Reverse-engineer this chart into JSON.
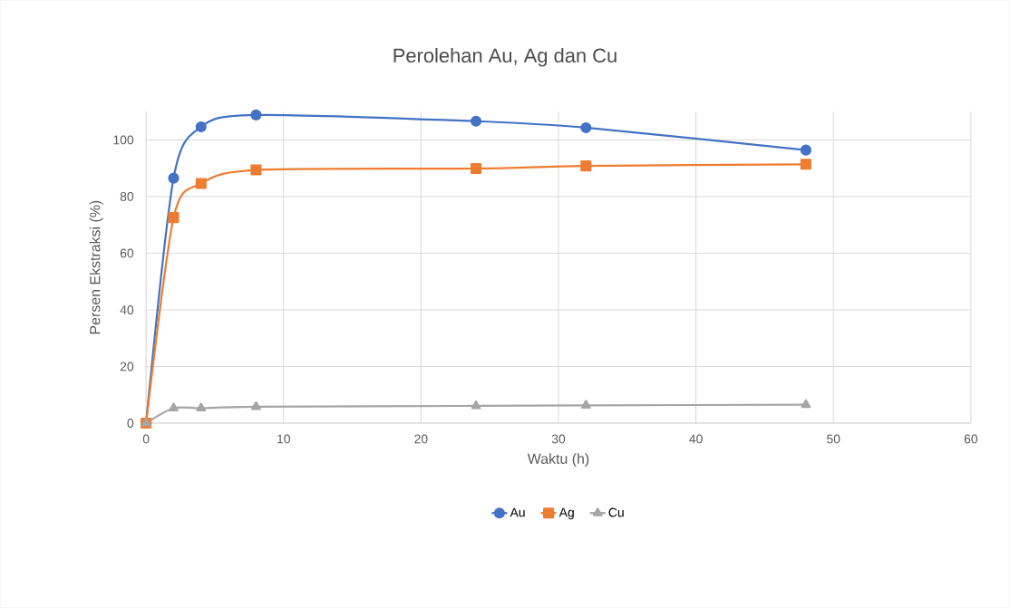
{
  "chart_data": {
    "type": "line",
    "title": "Perolehan Au, Ag dan Cu",
    "xlabel": "Waktu (h)",
    "ylabel": "Persen Ekstraksi (%)",
    "x": [
      0,
      2,
      4,
      8,
      24,
      32,
      48
    ],
    "series": [
      {
        "name": "Au",
        "color": "#4472c4",
        "marker": "circle",
        "values": [
          0,
          86.5,
          104.6,
          108.8,
          106.6,
          104.3,
          96.4
        ]
      },
      {
        "name": "Ag",
        "color": "#ed7d31",
        "marker": "square",
        "values": [
          0,
          72.6,
          84.6,
          89.4,
          89.9,
          90.8,
          91.4
        ]
      },
      {
        "name": "Cu",
        "color": "#a5a5a5",
        "marker": "triangle",
        "values": [
          0,
          5.3,
          5.3,
          5.8,
          6.1,
          6.3,
          6.5
        ]
      }
    ],
    "xlim": [
      0,
      60
    ],
    "xticks": [
      0,
      10,
      20,
      30,
      40,
      50,
      60
    ],
    "ylim": [
      0,
      110
    ],
    "yticks": [
      0,
      20,
      40,
      60,
      80,
      100
    ],
    "grid": true,
    "legend": "bottom",
    "line_style": "solid"
  }
}
